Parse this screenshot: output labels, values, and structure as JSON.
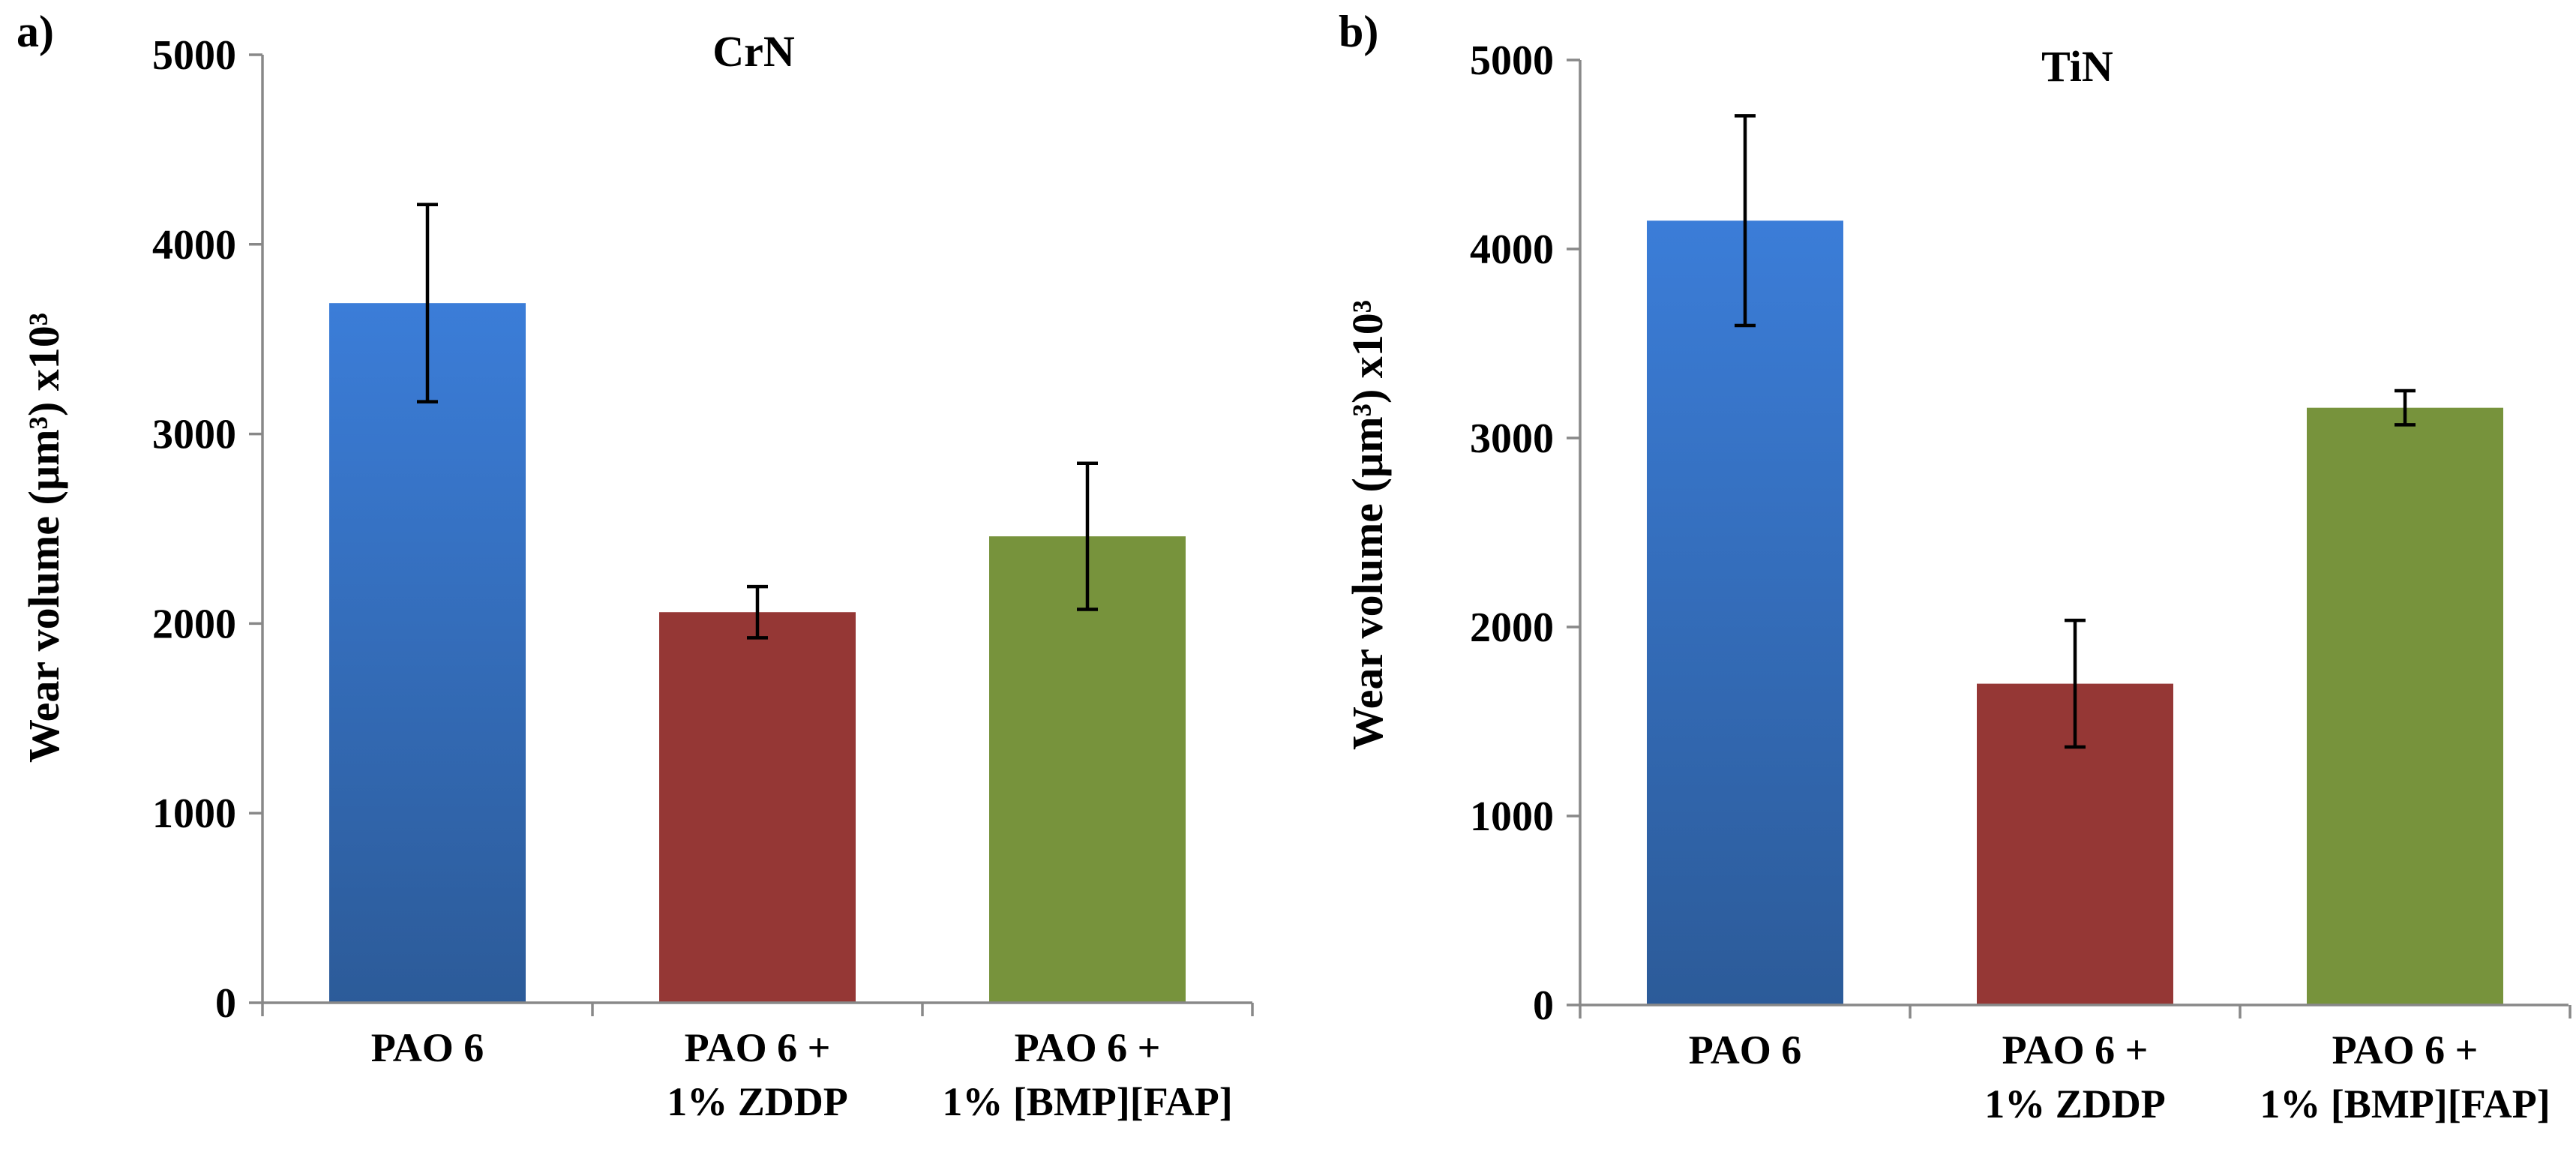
{
  "chart_data": [
    {
      "panel_label": "a)",
      "type": "bar",
      "title": "CrN",
      "ylabel": "Wear volume (µm³) x10³",
      "xlabel": "",
      "ylim": [
        0,
        5000
      ],
      "yticks": [
        "0",
        "1000",
        "2000",
        "3000",
        "4000",
        "5000"
      ],
      "categories": [
        [
          "PAO 6"
        ],
        [
          "PAO 6 +",
          "1%  ZDDP"
        ],
        [
          "PAO 6 +",
          "1% [BMP][FAP]"
        ]
      ],
      "values": [
        3690,
        2060,
        2460
      ],
      "errors": [
        520,
        135,
        385
      ],
      "colors": [
        "#3a7bce",
        "#953735",
        "#77933c"
      ]
    },
    {
      "panel_label": "b)",
      "type": "bar",
      "title": "TiN",
      "ylabel": "Wear volume (µm³) x10³",
      "xlabel": "",
      "ylim": [
        0,
        5000
      ],
      "yticks": [
        "0",
        "1000",
        "2000",
        "3000",
        "4000",
        "5000"
      ],
      "categories": [
        [
          "PAO 6"
        ],
        [
          "PAO 6 +",
          "1%  ZDDP"
        ],
        [
          "PAO 6 +",
          "1% [BMP][FAP]"
        ]
      ],
      "values": [
        4150,
        1700,
        3160
      ],
      "errors": [
        555,
        335,
        90
      ],
      "colors": [
        "#3a7bce",
        "#953735",
        "#77933c"
      ]
    }
  ]
}
